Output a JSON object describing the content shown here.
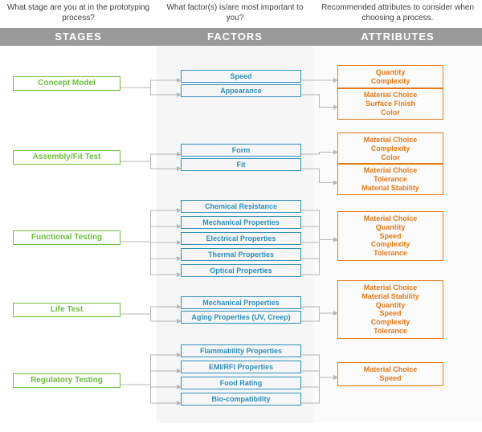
{
  "questions": {
    "stages": "What stage are you at in the prototyping process?",
    "factors": "What factor(s) is/are most important to you?",
    "attributes": "Recommended attributes to consider when choosing a process."
  },
  "headers": {
    "stages": "STAGES",
    "factors": "FACTORS",
    "attributes": "ATTRIBUTES"
  },
  "colors": {
    "stage_border": "#6cbf3f",
    "stage_text": "#6cbf3f",
    "factor_border": "#2d8fbd",
    "factor_text": "#2d8fbd",
    "attr_border": "#e67817",
    "attr_text": "#e67817",
    "header_bg": "#9a9a9a",
    "header_text": "#ffffff",
    "question_text": "#404040",
    "col2_bg": "#f6f6f6",
    "col3_bg": "#fbfbfb",
    "line": "#b7b7b7"
  },
  "stages": {
    "s1": "Concept Model",
    "s2": "Assembly/Fit Test",
    "s3": "Functional Testing",
    "s4": "Life Test",
    "s5": "Regulatory Testing"
  },
  "factors": {
    "f1": "Speed",
    "f2": "Appearance",
    "f3": "Form",
    "f4": "Fit",
    "f5": "Chemical Resistance",
    "f6": "Mechanical Properties",
    "f7": "Electrical Properties",
    "f8": "Thermal Properties",
    "f9": "Optical Properties",
    "f10": "Mechanical Properties",
    "f11": "Aging Properties (UV, Creep)",
    "f12": "Flammability Properties",
    "f13": "EMI/RFI Properties",
    "f14": "Food Rating",
    "f15": "Bio-compatibility"
  },
  "attributes": {
    "a1": [
      "Quantity",
      "Complexity"
    ],
    "a2": [
      "Material Choice",
      "Surface Finish",
      "Color"
    ],
    "a3": [
      "Material Choice",
      "Complexity",
      "Color"
    ],
    "a4": [
      "Material Choice",
      "Tolerance",
      "Material Stability"
    ],
    "a5": [
      "Material Choice",
      "Quantity",
      "Speed",
      "Complexity",
      "Tolerance"
    ],
    "a6": [
      "Material Choice",
      "Material Stability",
      "Quantity",
      "Speed",
      "Complexity",
      "Tolerance"
    ],
    "a7": [
      "Material Choice",
      "Speed"
    ]
  },
  "layout": {
    "stage_y": {
      "s1": 38,
      "s2": 130,
      "s3": 230,
      "s4": 320,
      "s5": 408
    },
    "factor_y": {
      "f1": 30,
      "f2": 48,
      "f3": 122,
      "f4": 140,
      "f5": 192,
      "f6": 212,
      "f7": 232,
      "f8": 252,
      "f9": 272,
      "f10": 312,
      "f11": 330,
      "f12": 372,
      "f13": 392,
      "f14": 412,
      "f15": 432
    },
    "attr_y": {
      "a1": 24,
      "a2": 52,
      "a3": 108,
      "a4": 146,
      "a5": 206,
      "a6": 292,
      "a7": 394
    },
    "aspect": "600x538"
  }
}
